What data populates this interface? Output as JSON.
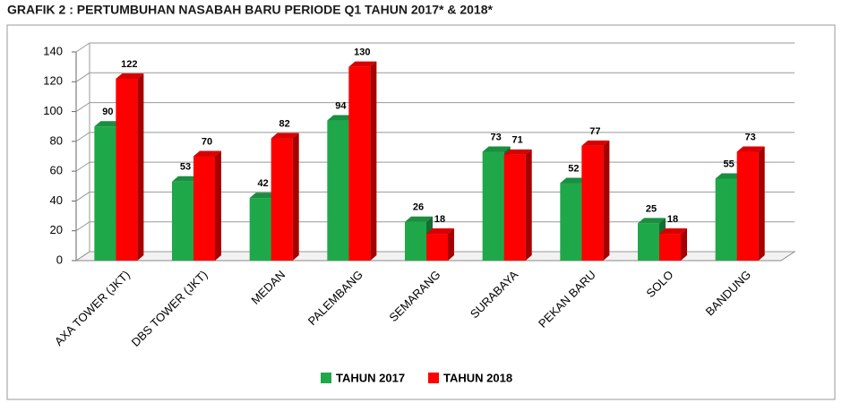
{
  "chart_data": {
    "type": "bar",
    "title": "GRAFIK 2 : PERTUMBUHAN NASABAH BARU PERIODE Q1 TAHUN 2017* & 2018*",
    "categories": [
      "AXA TOWER (JKT)",
      "DBS TOWER (JKT)",
      "MEDAN",
      "PALEMBANG",
      "SEMARANG",
      "SURABAYA",
      "PEKAN BARU",
      "SOLO",
      "BANDUNG"
    ],
    "series": [
      {
        "name": "TAHUN 2017",
        "color": "#1fa84a",
        "values": [
          90,
          53,
          42,
          94,
          26,
          73,
          52,
          25,
          55
        ]
      },
      {
        "name": "TAHUN 2018",
        "color": "#ff0000",
        "values": [
          122,
          70,
          82,
          130,
          18,
          71,
          77,
          18,
          73
        ]
      }
    ],
    "ylim": [
      0,
      140
    ],
    "yticks": [
      0,
      20,
      40,
      60,
      80,
      100,
      120,
      140
    ],
    "grid": true,
    "legend": "bottom"
  }
}
